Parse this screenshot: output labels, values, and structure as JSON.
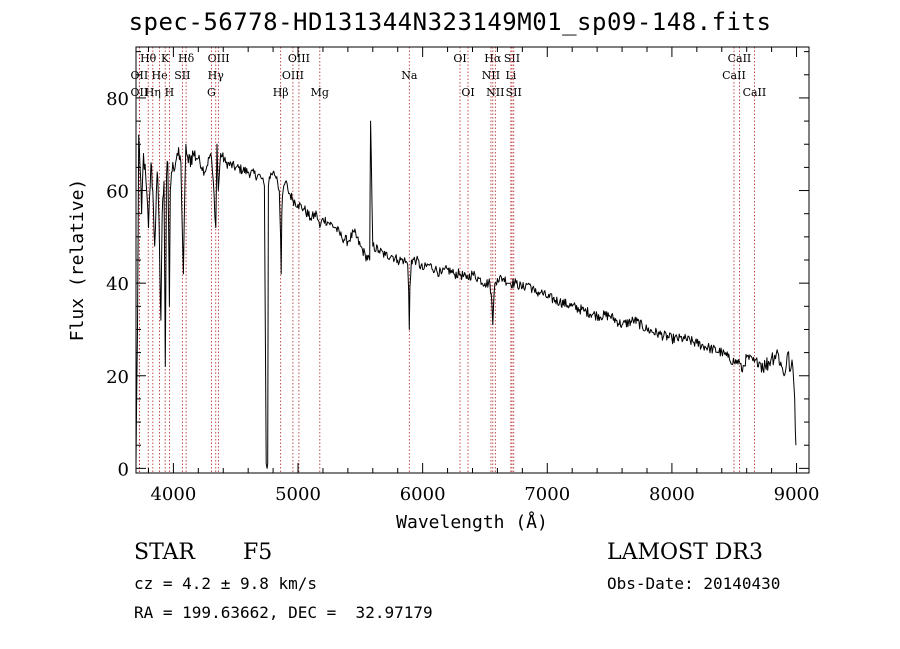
{
  "title": "spec-56778-HD131344N323149M01_sp09-148.fits",
  "info": {
    "object_class": "STAR",
    "subclass": "F5",
    "survey": "LAMOST DR3",
    "cz": "cz = 4.2 ± 9.8 km/s",
    "obs_date": "Obs-Date: 20140430",
    "coords": "RA = 199.63662, DEC =  32.97179"
  },
  "colors": {
    "line": "#000000",
    "marker": "#b22222",
    "background": "#ffffff"
  },
  "chart_data": {
    "type": "line",
    "title": "spec-56778-HD131344N323149M01_sp09-148.fits",
    "xlabel": "Wavelength (Å)",
    "ylabel": "Flux (relative)",
    "xlim": [
      3700,
      9100
    ],
    "ylim": [
      -1,
      91
    ],
    "xticks": [
      4000,
      5000,
      6000,
      7000,
      8000,
      9000
    ],
    "xtick_labels": [
      "4000",
      "5000",
      "6000",
      "7000",
      "8000",
      "9000"
    ],
    "yticks": [
      0,
      20,
      40,
      60,
      80
    ],
    "ytick_labels": [
      "0",
      "20",
      "40",
      "60",
      "80"
    ],
    "grid": false,
    "series": [
      {
        "name": "flux",
        "x": [
          3700,
          3712,
          3722,
          3732,
          3745,
          3760,
          3780,
          3800,
          3820,
          3835,
          3850,
          3870,
          3880,
          3890,
          3900,
          3910,
          3925,
          3935,
          3945,
          3955,
          3968,
          3975,
          3985,
          4000,
          4030,
          4060,
          4080,
          4100,
          4120,
          4160,
          4200,
          4250,
          4300,
          4320,
          4340,
          4350,
          4360,
          4380,
          4420,
          4500,
          4600,
          4700,
          4730,
          4745,
          4752,
          4757,
          4762,
          4770,
          4800,
          4830,
          4850,
          4860,
          4865,
          4870,
          4880,
          4900,
          4920,
          4960,
          5000,
          5050,
          5100,
          5150,
          5175,
          5200,
          5250,
          5300,
          5350,
          5400,
          5450,
          5500,
          5540,
          5575,
          5578,
          5582,
          5600,
          5650,
          5700,
          5750,
          5800,
          5850,
          5880,
          5888,
          5893,
          5898,
          5910,
          5950,
          6000,
          6050,
          6100,
          6150,
          6200,
          6250,
          6300,
          6350,
          6400,
          6450,
          6500,
          6540,
          6555,
          6563,
          6570,
          6580,
          6600,
          6650,
          6700,
          6750,
          6800,
          6850,
          6900,
          6950,
          7000,
          7100,
          7200,
          7300,
          7400,
          7500,
          7600,
          7700,
          7800,
          7900,
          8000,
          8100,
          8200,
          8300,
          8400,
          8450,
          8500,
          8542,
          8560,
          8600,
          8662,
          8700,
          8750,
          8800,
          8850,
          8880,
          8900,
          8930,
          8950,
          8970,
          8985,
          8995
        ],
        "y": [
          1,
          30,
          72,
          65,
          55,
          68,
          62,
          52,
          66,
          60,
          48,
          64,
          58,
          45,
          32,
          55,
          62,
          22,
          63,
          66,
          35,
          60,
          64,
          65,
          68,
          66,
          42,
          70,
          66,
          68,
          67,
          64,
          68,
          62,
          52,
          70,
          60,
          68,
          66,
          65,
          64,
          63,
          61,
          1,
          0,
          1,
          61,
          63,
          64,
          63,
          60,
          50,
          42,
          55,
          60,
          62,
          60,
          58,
          57,
          56,
          54,
          55,
          52,
          54,
          53,
          52,
          50,
          49,
          51,
          48,
          46,
          45,
          60,
          75,
          48,
          47,
          46,
          46,
          45,
          45,
          44,
          38,
          30,
          39,
          45,
          45,
          43,
          44,
          43,
          42,
          43,
          42,
          42,
          41,
          42,
          41,
          40,
          40,
          36,
          31,
          36,
          40,
          41,
          41,
          40,
          40,
          39,
          40,
          38,
          38,
          37,
          36,
          35,
          34,
          33,
          33,
          31,
          32,
          30,
          29,
          28,
          28,
          27,
          26,
          25,
          24,
          23,
          23,
          21,
          24,
          23,
          23,
          22,
          24,
          25,
          22,
          20,
          25,
          21,
          22,
          15,
          5
        ]
      }
    ],
    "line_markers": [
      {
        "label": "Hθ",
        "w": 3798,
        "row": 1
      },
      {
        "label": "OII",
        "w": 3727,
        "row": 2
      },
      {
        "label": "OII",
        "w": 3727,
        "row": 3
      },
      {
        "label": "He",
        "w": 3889,
        "row": 2
      },
      {
        "label": "Hη",
        "w": 3835,
        "row": 3
      },
      {
        "label": "K",
        "w": 3934,
        "row": 1
      },
      {
        "label": "H",
        "w": 3968,
        "row": 3
      },
      {
        "label": "SII",
        "w": 4072,
        "row": 2
      },
      {
        "label": "Hδ",
        "w": 4102,
        "row": 1
      },
      {
        "label": "OIII",
        "w": 4363,
        "row": 1
      },
      {
        "label": "Hγ",
        "w": 4340,
        "row": 2
      },
      {
        "label": "G",
        "w": 4305,
        "row": 3
      },
      {
        "label": "Hβ",
        "w": 4861,
        "row": 3
      },
      {
        "label": "OIII",
        "w": 4959,
        "row": 2
      },
      {
        "label": "OIII",
        "w": 5007,
        "row": 1
      },
      {
        "label": "Mg",
        "w": 5175,
        "row": 3
      },
      {
        "label": "Na",
        "w": 5893,
        "row": 2
      },
      {
        "label": "OI",
        "w": 6300,
        "row": 1
      },
      {
        "label": "OI",
        "w": 6364,
        "row": 3
      },
      {
        "label": "Hα",
        "w": 6563,
        "row": 1
      },
      {
        "label": "NII",
        "w": 6548,
        "row": 2
      },
      {
        "label": "NII",
        "w": 6583,
        "row": 3
      },
      {
        "label": "SII",
        "w": 6717,
        "row": 1
      },
      {
        "label": "Li",
        "w": 6708,
        "row": 2
      },
      {
        "label": "SII",
        "w": 6731,
        "row": 3
      },
      {
        "label": "CaII",
        "w": 8542,
        "row": 1
      },
      {
        "label": "CaII",
        "w": 8498,
        "row": 2
      },
      {
        "label": "CaII",
        "w": 8662,
        "row": 3
      }
    ]
  }
}
